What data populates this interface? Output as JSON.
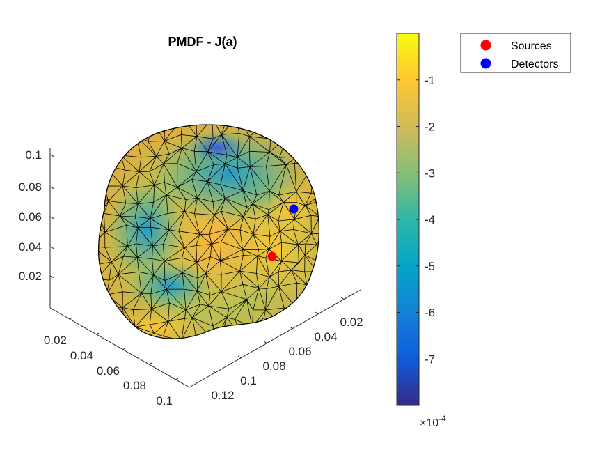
{
  "chart_data": {
    "type": "surface",
    "title": "PMDF - J(a)",
    "xlabel": "",
    "ylabel": "",
    "zlabel": "",
    "z_axis": {
      "ticks": [
        "0.02",
        "0.04",
        "0.06",
        "0.08",
        "0.1"
      ]
    },
    "left_axis": {
      "ticks": [
        "0.02",
        "0.04",
        "0.06",
        "0.08",
        "0.1"
      ]
    },
    "right_axis": {
      "ticks": [
        "0.02",
        "0.04",
        "0.06",
        "0.08",
        "0.1",
        "0.12"
      ]
    },
    "colorbar": {
      "colormap": "parula",
      "range": [
        -8.0,
        0.0
      ],
      "ticks": [
        -7,
        -6,
        -5,
        -4,
        -3,
        -2,
        -1
      ],
      "tick_labels": [
        "-7",
        "-6",
        "-5",
        "-4",
        "-3",
        "-2",
        "-1"
      ],
      "exponent_label": "×10",
      "exponent_power": "-4"
    },
    "legend": {
      "placement": "top-right",
      "entries": [
        {
          "label": "Sources",
          "color": "#ff0000",
          "marker": "filled-circle"
        },
        {
          "label": "Detectors",
          "color": "#0000ff",
          "marker": "filled-circle"
        }
      ]
    },
    "grid": false
  }
}
